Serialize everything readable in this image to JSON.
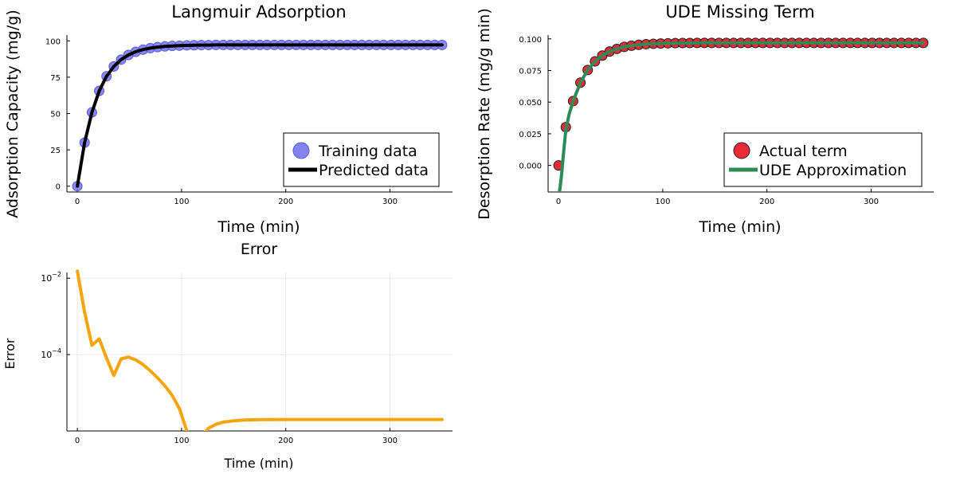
{
  "chart_data": [
    {
      "id": "langmuir",
      "type": "scatter",
      "title": "Langmuir Adsorption",
      "xlabel": "Time (min)",
      "ylabel": "Adsorption Capacity (mg/g)",
      "xlim": [
        -10,
        360
      ],
      "ylim": [
        -4,
        104
      ],
      "xticks": [
        0,
        100,
        200,
        300
      ],
      "xtick_labels": [
        "0",
        "100",
        "200",
        "300"
      ],
      "yticks": [
        0,
        25,
        50,
        75,
        100
      ],
      "ytick_labels": [
        "0",
        "25",
        "50",
        "75",
        "100"
      ],
      "grid": false,
      "legend": "bottom-right",
      "series": [
        {
          "name": "Training data",
          "kind": "markers",
          "color": "#7b7bf0",
          "x": [
            0,
            7,
            14,
            21,
            28,
            35,
            42,
            49,
            56,
            63,
            70,
            77,
            84,
            91,
            98,
            105,
            112,
            119,
            126,
            133,
            140,
            147,
            154,
            161,
            168,
            175,
            182,
            189,
            196,
            203,
            210,
            217,
            224,
            231,
            238,
            245,
            252,
            259,
            266,
            273,
            280,
            287,
            294,
            301,
            308,
            315,
            322,
            329,
            336,
            343,
            350
          ],
          "y": [
            0,
            30,
            50.8,
            65.6,
            75.6,
            82.4,
            87.1,
            90.3,
            92.5,
            94.0,
            95.0,
            95.7,
            96.2,
            96.5,
            96.7,
            96.9,
            97.0,
            97.1,
            97.1,
            97.2,
            97.2,
            97.2,
            97.2,
            97.2,
            97.2,
            97.2,
            97.2,
            97.2,
            97.2,
            97.2,
            97.2,
            97.2,
            97.2,
            97.2,
            97.2,
            97.2,
            97.2,
            97.2,
            97.2,
            97.2,
            97.2,
            97.2,
            97.2,
            97.2,
            97.2,
            97.2,
            97.2,
            97.2,
            97.2,
            97.2,
            97.2
          ]
        },
        {
          "name": "Predicted data",
          "kind": "line",
          "color": "#000000",
          "x": [
            0,
            7,
            14,
            21,
            28,
            35,
            42,
            49,
            56,
            63,
            70,
            77,
            84,
            91,
            98,
            105,
            112,
            119,
            126,
            133,
            140,
            175,
            210,
            245,
            280,
            315,
            350
          ],
          "y": [
            0,
            30,
            50.8,
            65.6,
            75.6,
            82.4,
            87.1,
            90.3,
            92.5,
            94.0,
            95.0,
            95.7,
            96.2,
            96.5,
            96.7,
            96.9,
            97.0,
            97.1,
            97.1,
            97.2,
            97.2,
            97.2,
            97.2,
            97.2,
            97.2,
            97.2,
            97.2
          ]
        }
      ]
    },
    {
      "id": "ude",
      "type": "scatter",
      "title": "UDE Missing Term",
      "xlabel": "Time (min)",
      "ylabel": "Desorption Rate (mg/g min)",
      "xlim": [
        -10,
        360
      ],
      "ylim": [
        -0.021,
        0.103
      ],
      "xticks": [
        0,
        100,
        200,
        300
      ],
      "xtick_labels": [
        "0",
        "100",
        "200",
        "300"
      ],
      "yticks": [
        0,
        0.025,
        0.05,
        0.075,
        0.1
      ],
      "ytick_labels": [
        "0.000",
        "0.025",
        "0.050",
        "0.075",
        "0.100"
      ],
      "grid": false,
      "legend": "bottom-right",
      "series": [
        {
          "name": "Actual term",
          "kind": "markers",
          "color": "#e8202a",
          "x": [
            0,
            7,
            14,
            21,
            28,
            35,
            42,
            49,
            56,
            63,
            70,
            77,
            84,
            91,
            98,
            105,
            112,
            119,
            126,
            133,
            140,
            147,
            154,
            161,
            168,
            175,
            182,
            189,
            196,
            203,
            210,
            217,
            224,
            231,
            238,
            245,
            252,
            259,
            266,
            273,
            280,
            287,
            294,
            301,
            308,
            315,
            322,
            329,
            336,
            343,
            350
          ],
          "y": [
            0,
            0.0302,
            0.0508,
            0.0654,
            0.0754,
            0.0822,
            0.0868,
            0.09,
            0.0921,
            0.0936,
            0.0946,
            0.0953,
            0.0958,
            0.0961,
            0.0963,
            0.0965,
            0.0966,
            0.0967,
            0.0967,
            0.0968,
            0.0968,
            0.0968,
            0.0968,
            0.0968,
            0.0968,
            0.0968,
            0.0968,
            0.0968,
            0.0968,
            0.0968,
            0.0968,
            0.0968,
            0.0968,
            0.0968,
            0.0968,
            0.0968,
            0.0968,
            0.0968,
            0.0968,
            0.0968,
            0.0968,
            0.0968,
            0.0968,
            0.0968,
            0.0968,
            0.0968,
            0.0968,
            0.0968,
            0.0968,
            0.0968,
            0.0968
          ]
        },
        {
          "name": "UDE Approximation",
          "kind": "line",
          "color": "#2e8b57",
          "x": [
            1,
            3,
            5,
            7,
            10,
            14,
            21,
            28,
            35,
            42,
            49,
            56,
            63,
            70,
            77,
            84,
            91,
            98,
            105,
            112,
            119,
            126,
            140,
            175,
            210,
            245,
            280,
            315,
            350
          ],
          "y": [
            -0.021,
            -0.0068,
            0.0115,
            0.0275,
            0.04,
            0.0508,
            0.0654,
            0.0754,
            0.0822,
            0.0868,
            0.09,
            0.0921,
            0.0936,
            0.0946,
            0.0953,
            0.0958,
            0.0961,
            0.0963,
            0.0965,
            0.0966,
            0.0967,
            0.0967,
            0.0968,
            0.0968,
            0.0968,
            0.0968,
            0.0968,
            0.0968,
            0.0968
          ]
        }
      ]
    },
    {
      "id": "error",
      "type": "line",
      "title": "Error",
      "xlabel": "Time (min)",
      "ylabel": "Error",
      "scale_y": "log",
      "xlim": [
        -10,
        360
      ],
      "ylim_log10": [
        -6.0,
        -1.85
      ],
      "xticks": [
        0,
        100,
        200,
        300
      ],
      "xtick_labels": [
        "0",
        "100",
        "200",
        "300"
      ],
      "yticks_log10": [
        -2,
        -4
      ],
      "grid": true,
      "series": [
        {
          "kind": "line",
          "color": "#f5a40a",
          "x": [
            0,
            7,
            14,
            21,
            28,
            35,
            42,
            49,
            56,
            63,
            70,
            77,
            84,
            91,
            98,
            105,
            109,
            112,
            119,
            126,
            133,
            140,
            150,
            160,
            175,
            200,
            230,
            260,
            300,
            350
          ],
          "y": [
            0.0153,
            0.00128,
            0.000175,
            0.000258,
            8.19e-05,
            2.83e-05,
            7.73e-05,
            8.62e-05,
            7.29e-05,
            5.49e-05,
            3.77e-05,
            2.46e-05,
            1.52e-05,
            8.56e-06,
            3.86e-06,
            1.02e-06,
            2.2e-07,
            2.5e-07,
            7.3e-07,
            1.19e-06,
            1.5e-06,
            1.7e-06,
            1.85e-06,
            1.93e-06,
            1.98e-06,
            2e-06,
            2e-06,
            2e-06,
            2e-06,
            2e-06
          ]
        }
      ]
    }
  ]
}
